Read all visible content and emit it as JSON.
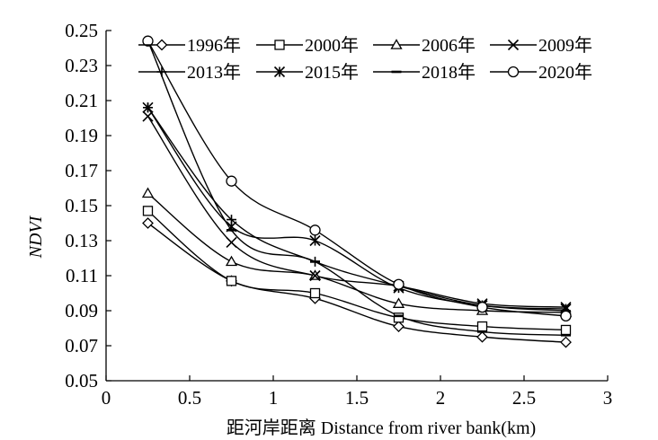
{
  "chart_data": {
    "type": "line",
    "xlabel": "距河岸距离  Distance from river bank(km)",
    "ylabel": "NDVI",
    "xlim": [
      0,
      3
    ],
    "ylim": [
      0.05,
      0.25
    ],
    "xticks": [
      "0",
      "0.5",
      "1",
      "1.5",
      "2",
      "2.5",
      "3"
    ],
    "yticks": [
      "0.05",
      "0.07",
      "0.09",
      "0.11",
      "0.13",
      "0.15",
      "0.17",
      "0.19",
      "0.21",
      "0.23",
      "0.25"
    ],
    "grid": false,
    "legend_position": "top",
    "x": [
      0.25,
      0.75,
      1.25,
      1.75,
      2.25,
      2.75
    ],
    "series": [
      {
        "name": "1996年",
        "marker": "diamond",
        "values": [
          0.14,
          0.107,
          0.097,
          0.081,
          0.075,
          0.072
        ]
      },
      {
        "name": "2000年",
        "marker": "square",
        "values": [
          0.147,
          0.107,
          0.1,
          0.086,
          0.081,
          0.079
        ]
      },
      {
        "name": "2006年",
        "marker": "triangle",
        "values": [
          0.157,
          0.118,
          0.11,
          0.094,
          0.09,
          0.089
        ]
      },
      {
        "name": "2009年",
        "marker": "x",
        "values": [
          0.201,
          0.129,
          0.11,
          0.104,
          0.094,
          0.092
        ]
      },
      {
        "name": "2013年",
        "marker": "plus",
        "values": [
          0.206,
          0.142,
          0.118,
          0.104,
          0.093,
          0.09
        ]
      },
      {
        "name": "2015年",
        "marker": "asterisk",
        "values": [
          0.206,
          0.138,
          0.13,
          0.103,
          0.093,
          0.091
        ]
      },
      {
        "name": "2018年",
        "marker": "dash",
        "values": [
          0.244,
          0.136,
          0.118,
          0.087,
          0.078,
          0.076
        ]
      },
      {
        "name": "2020年",
        "marker": "circle",
        "values": [
          0.244,
          0.164,
          0.136,
          0.105,
          0.092,
          0.087
        ]
      }
    ]
  }
}
